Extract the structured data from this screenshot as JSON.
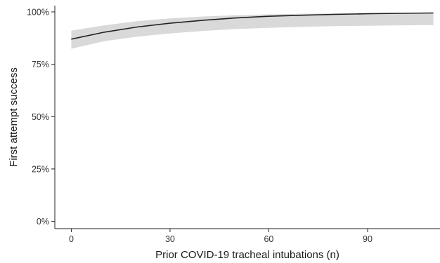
{
  "chart_data": {
    "type": "line",
    "title": "",
    "xlabel": "Prior COVID-19 tracheal intubations (n)",
    "ylabel": "First attempt success",
    "xlim": [
      -5,
      112
    ],
    "ylim": [
      -3.5,
      103
    ],
    "x_ticks": [
      0,
      30,
      60,
      90
    ],
    "x_tick_labels": [
      "0",
      "30",
      "60",
      "90"
    ],
    "y_ticks": [
      0,
      25,
      50,
      75,
      100
    ],
    "y_tick_labels": [
      "0%",
      "25%",
      "50%",
      "75%",
      "100%"
    ],
    "grid": false,
    "legend": "none",
    "series": [
      {
        "x": [
          0,
          10,
          20,
          30,
          40,
          50,
          60,
          70,
          80,
          90,
          100,
          110
        ],
        "y": [
          87.0,
          90.3,
          92.8,
          94.6,
          96.0,
          97.1,
          97.9,
          98.4,
          98.8,
          99.1,
          99.3,
          99.5
        ],
        "ci_lower": [
          82.4,
          86.0,
          88.2,
          89.7,
          90.9,
          91.8,
          92.4,
          92.9,
          93.2,
          93.4,
          93.6,
          93.7
        ],
        "ci_upper": [
          91.0,
          93.6,
          95.6,
          96.9,
          97.8,
          98.4,
          98.8,
          99.1,
          99.3,
          99.4,
          99.5,
          99.6
        ]
      }
    ],
    "colors": {
      "line": "#222222",
      "band": "#d9d9d9",
      "axis": "#222222"
    }
  }
}
